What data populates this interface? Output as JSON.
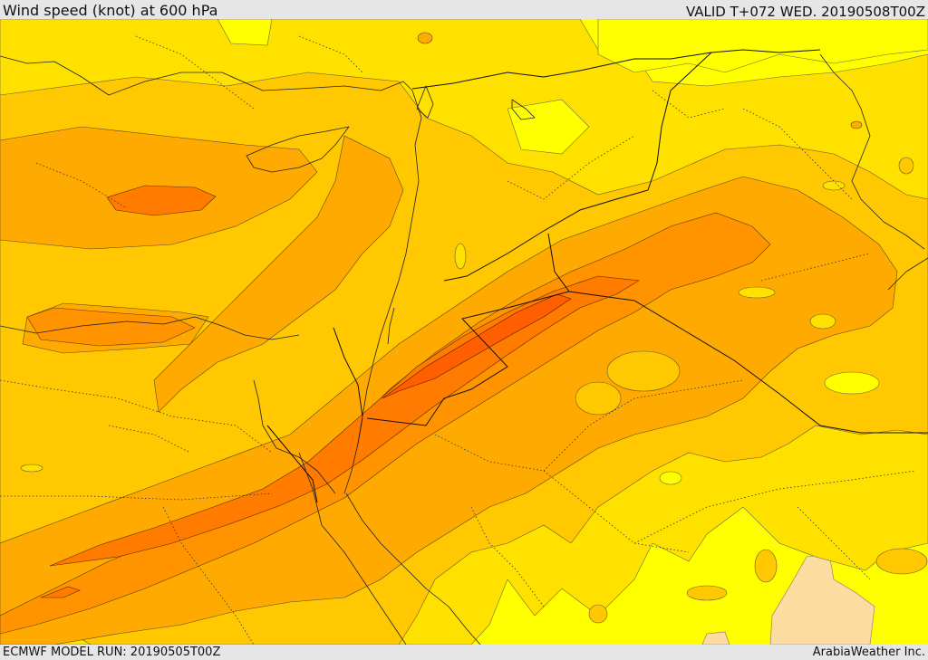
{
  "header": {
    "title": "Wind speed (knot) at 600 hPa",
    "valid": "VALID T+072 WED. 20190508T00Z"
  },
  "footer": {
    "model_run": "ECMWF MODEL RUN: 20190505T00Z",
    "credit": "ArabiaWeather Inc."
  },
  "map": {
    "field": "wind speed",
    "units": "knot",
    "level": "600 hPa",
    "palette": [
      "#ffff00",
      "#ffe100",
      "#ffc800",
      "#ffaa00",
      "#ff9400",
      "#ff7c00",
      "#ff5f00",
      "#fcdca0"
    ]
  }
}
